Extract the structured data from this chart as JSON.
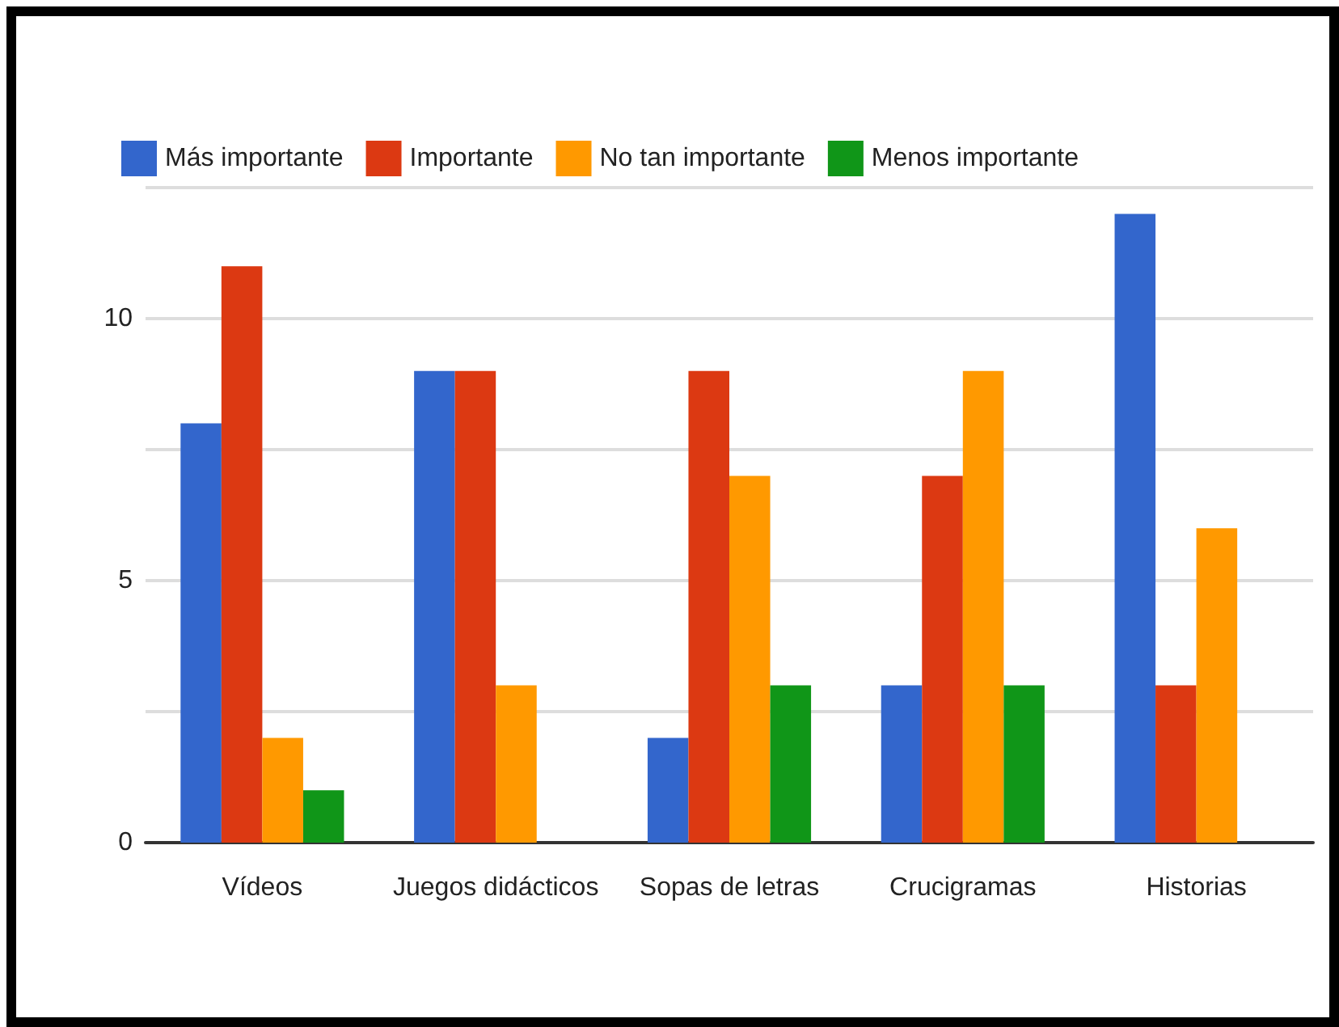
{
  "chart_data": {
    "type": "bar",
    "categories": [
      "Vídeos",
      "Juegos didácticos",
      "Sopas de letras",
      "Crucigramas",
      "Historias"
    ],
    "series": [
      {
        "name": "Más importante",
        "color": "#3366cc",
        "values": [
          8,
          9,
          2,
          3,
          12
        ]
      },
      {
        "name": "Importante",
        "color": "#dc3912",
        "values": [
          11,
          9,
          9,
          7,
          3
        ]
      },
      {
        "name": "No tan importante",
        "color": "#ff9900",
        "values": [
          2,
          3,
          7,
          9,
          6
        ]
      },
      {
        "name": "Menos importante",
        "color": "#109618",
        "values": [
          1,
          0,
          3,
          3,
          0
        ]
      }
    ],
    "ylim": [
      0,
      12.5
    ],
    "yticks": [
      0,
      {
        "value": 2.5,
        "label": null
      },
      5,
      {
        "value": 7.5,
        "label": null
      },
      10,
      {
        "value": 12.5,
        "label": null
      }
    ],
    "grid": "y",
    "legend": "top left"
  }
}
